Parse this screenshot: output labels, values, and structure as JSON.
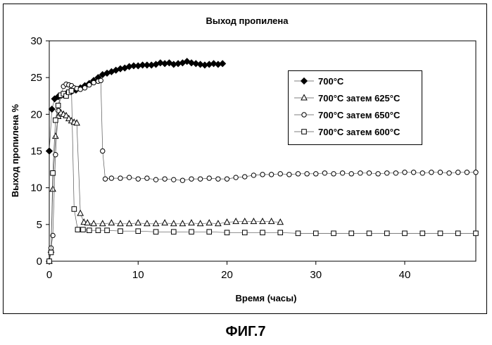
{
  "figure_caption": "ФИГ.7",
  "chart_data": {
    "type": "scatter",
    "title": "Выход пропилена",
    "xlabel": "Время (часы)",
    "ylabel": "Выход пропилена %",
    "xlim": [
      0,
      48
    ],
    "ylim": [
      0,
      30
    ],
    "xticks": [
      0,
      10,
      20,
      30,
      40
    ],
    "yticks": [
      0,
      5,
      10,
      15,
      20,
      25,
      30
    ],
    "grid": false,
    "legend_position": "right",
    "series": [
      {
        "name": "700°C",
        "marker": "diamond",
        "color": "#000000",
        "x": [
          0.0,
          0.3,
          0.6,
          1.0,
          1.5,
          2.0,
          2.5,
          3.0,
          3.5,
          4.0,
          4.5,
          5.0,
          5.5,
          6.0,
          6.5,
          7.0,
          7.5,
          8.0,
          8.5,
          9.0,
          9.5,
          10.0,
          10.5,
          11.0,
          11.5,
          12.0,
          12.5,
          13.0,
          13.5,
          14.0,
          14.5,
          15.0,
          15.5,
          16.0,
          16.5,
          17.0,
          17.5,
          18.0,
          18.5,
          19.0,
          19.5
        ],
        "y": [
          15.0,
          20.7,
          22.1,
          22.4,
          22.7,
          22.9,
          23.1,
          23.3,
          23.6,
          23.9,
          24.2,
          24.6,
          25.0,
          25.4,
          25.6,
          25.8,
          26.0,
          26.2,
          26.3,
          26.5,
          26.6,
          26.6,
          26.7,
          26.7,
          26.7,
          26.8,
          27.0,
          26.9,
          27.0,
          26.8,
          26.9,
          27.0,
          27.2,
          27.0,
          26.9,
          26.8,
          26.7,
          26.8,
          26.9,
          26.8,
          26.9
        ]
      },
      {
        "name": "700°C затем 625°C",
        "marker": "triangle",
        "color": "#000000",
        "x": [
          0.0,
          0.2,
          0.4,
          0.7,
          1.0,
          1.3,
          1.6,
          1.9,
          2.2,
          2.5,
          2.8,
          3.1,
          3.5,
          3.9,
          4.3,
          5.0,
          6.0,
          7.0,
          8.0,
          9.0,
          10.0,
          11.0,
          12.0,
          13.0,
          14.0,
          15.0,
          16.0,
          17.0,
          18.0,
          19.0,
          20.0,
          21.0,
          22.0,
          23.0,
          24.0,
          25.0,
          26.0
        ],
        "y": [
          0.0,
          1.5,
          9.8,
          17.0,
          19.7,
          20.2,
          20.0,
          19.8,
          19.4,
          19.1,
          18.9,
          18.8,
          6.5,
          5.3,
          5.2,
          5.1,
          5.1,
          5.2,
          5.1,
          5.1,
          5.2,
          5.1,
          5.1,
          5.2,
          5.1,
          5.1,
          5.2,
          5.1,
          5.2,
          5.1,
          5.3,
          5.4,
          5.4,
          5.4,
          5.4,
          5.4,
          5.3
        ]
      },
      {
        "name": "700°C затем 650°C",
        "marker": "circle",
        "color": "#000000",
        "x": [
          0.0,
          0.2,
          0.4,
          0.7,
          1.0,
          1.3,
          1.6,
          1.9,
          2.2,
          2.5,
          2.8,
          3.1,
          3.5,
          4.0,
          4.5,
          5.0,
          5.5,
          5.8,
          6.0,
          6.3,
          7.0,
          8.0,
          9.0,
          10.0,
          11.0,
          12.0,
          13.0,
          14.0,
          15.0,
          16.0,
          17.0,
          18.0,
          19.0,
          20.0,
          21.0,
          22.0,
          23.0,
          24.0,
          25.0,
          26.0,
          27.0,
          28.0,
          29.0,
          30.0,
          31.0,
          32.0,
          33.0,
          34.0,
          35.0,
          36.0,
          37.0,
          38.0,
          39.0,
          40.0,
          41.0,
          42.0,
          43.0,
          44.0,
          45.0,
          46.0,
          47.0,
          48.0
        ],
        "y": [
          0.0,
          1.8,
          3.5,
          14.5,
          20.5,
          22.5,
          23.8,
          24.1,
          24.0,
          23.9,
          23.6,
          23.5,
          23.4,
          23.6,
          24.0,
          24.3,
          24.5,
          24.6,
          15.0,
          11.2,
          11.3,
          11.3,
          11.4,
          11.2,
          11.3,
          11.1,
          11.2,
          11.1,
          11.0,
          11.2,
          11.2,
          11.3,
          11.2,
          11.2,
          11.4,
          11.5,
          11.7,
          11.8,
          11.8,
          11.9,
          11.8,
          11.9,
          11.9,
          11.9,
          12.0,
          11.9,
          12.0,
          11.9,
          12.0,
          12.0,
          11.9,
          12.0,
          12.0,
          12.1,
          12.1,
          12.0,
          12.1,
          12.1,
          12.0,
          12.1,
          12.1,
          12.1
        ]
      },
      {
        "name": "700°C затем 600°C",
        "marker": "square",
        "color": "#000000",
        "x": [
          0.0,
          0.2,
          0.4,
          0.7,
          1.0,
          1.3,
          1.6,
          1.9,
          2.2,
          2.5,
          2.8,
          3.2,
          3.8,
          4.5,
          5.5,
          6.5,
          8.0,
          10.0,
          12.0,
          14.0,
          16.0,
          18.0,
          20.0,
          22.0,
          24.0,
          26.0,
          28.0,
          30.0,
          32.0,
          34.0,
          36.0,
          38.0,
          40.0,
          42.0,
          44.0,
          46.0,
          48.0
        ],
        "y": [
          0.0,
          1.2,
          12.0,
          19.2,
          21.2,
          22.6,
          22.8,
          22.5,
          23.0,
          23.2,
          7.1,
          4.3,
          4.3,
          4.2,
          4.2,
          4.2,
          4.1,
          4.1,
          4.0,
          4.0,
          4.0,
          4.0,
          3.9,
          3.9,
          3.9,
          3.9,
          3.8,
          3.8,
          3.8,
          3.8,
          3.8,
          3.8,
          3.8,
          3.8,
          3.8,
          3.8,
          3.8
        ]
      }
    ]
  }
}
